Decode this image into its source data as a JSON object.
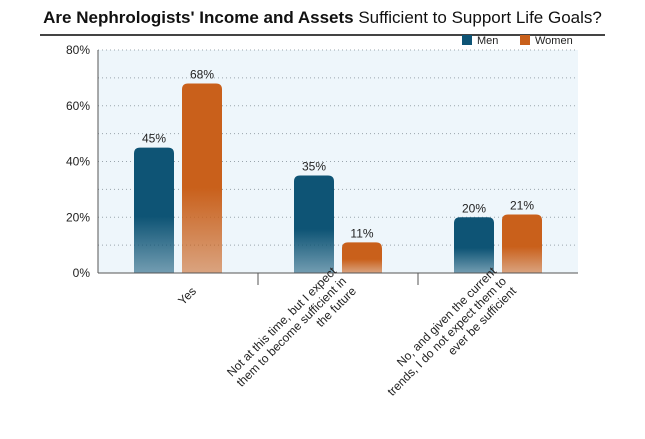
{
  "chart_data": {
    "type": "bar",
    "title_bold": "Are Nephrologists' Income and Assets",
    "title_rest": "Sufficient to Support Life Goals?",
    "categories": [
      [
        "Yes"
      ],
      [
        "Not at this time, but I expect",
        "them to become sufficient in",
        "the future"
      ],
      [
        "No, and given the current",
        "trends, I do not expect them to",
        "ever be sufficient"
      ]
    ],
    "series": [
      {
        "name": "Men",
        "values": [
          45,
          35,
          20
        ],
        "labels": [
          "45%",
          "35%",
          "20%"
        ],
        "color": "#0e5475"
      },
      {
        "name": "Women",
        "values": [
          68,
          11,
          21
        ],
        "labels": [
          "68%",
          "11%",
          "21%"
        ],
        "color": "#c9601b"
      }
    ],
    "ylim": [
      0,
      80
    ],
    "yticks": [
      0,
      20,
      40,
      60,
      80
    ],
    "ytick_labels": [
      "0%",
      "20%",
      "40%",
      "60%",
      "80%"
    ],
    "grid": true,
    "legend_position": "top-right"
  }
}
